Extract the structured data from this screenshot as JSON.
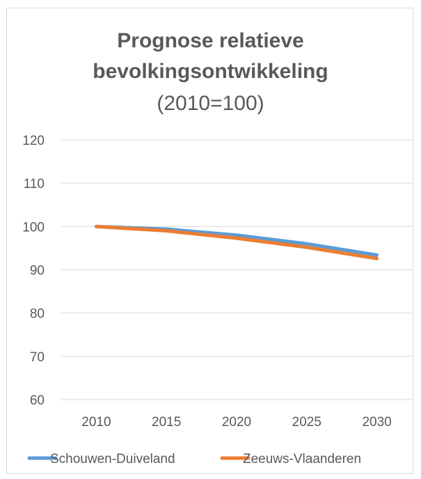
{
  "chart_data": {
    "type": "line",
    "title_line1": "Prognose relatieve",
    "title_line2": "bevolkingsontwikkeling",
    "subtitle": "(2010=100)",
    "xlabel": "",
    "ylabel": "",
    "categories": [
      "2010",
      "2015",
      "2020",
      "2025",
      "2030"
    ],
    "ylim": [
      60,
      120
    ],
    "yticks": [
      60,
      70,
      80,
      90,
      100,
      110,
      120
    ],
    "grid": true,
    "legend_position": "bottom",
    "series": [
      {
        "name": "Schouwen-Duiveland",
        "color": "#5b9bd5",
        "values": [
          100,
          99.4,
          98.0,
          96.0,
          93.4
        ]
      },
      {
        "name": "Zeeuws-Vlaanderen",
        "color": "#ed7d31",
        "values": [
          100,
          99.0,
          97.3,
          95.2,
          92.6
        ]
      }
    ]
  }
}
